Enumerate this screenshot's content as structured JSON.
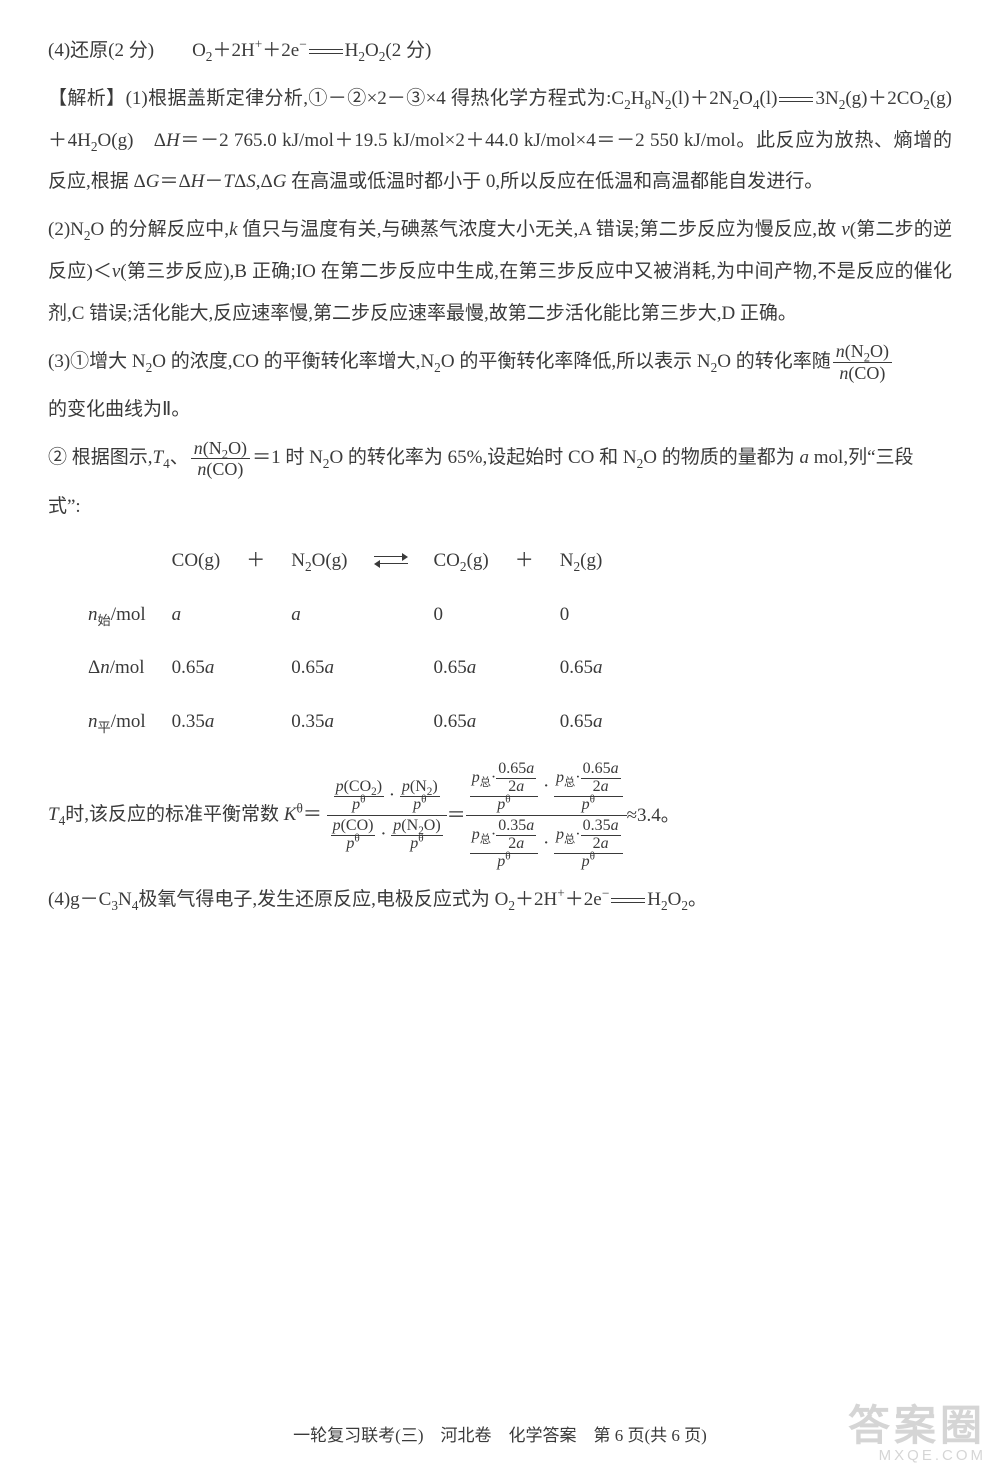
{
  "q4_line": "(4)还原(2 分)　　O₂＋2H⁺＋2e⁻ ══ H₂O₂(2 分)",
  "analysis_label": "【解析】",
  "p1a": "(1)根据盖斯定律分析,①－②×2－③×4 得热化学方程式为:C₂H₈N₂(l)＋2N₂O₄(l) ══ 3N₂(g)＋",
  "p1b": "2CO₂(g)＋4H₂O(g)　Δ",
  "p1b_H": "H",
  "p1c": "＝－2 765.0 kJ/mol＋19.5 kJ/mol×2＋44.0 kJ/mol×4＝－2 550 kJ/mol。此反",
  "p1d": "应为放热、熵增的反应,根据 Δ",
  "p1d_G": "G",
  "p1e": "＝Δ",
  "p1e_H": "H",
  "p1f": "－",
  "p1f_T": "T",
  "p1g": "Δ",
  "p1g_S": "S",
  "p1h": ",Δ",
  "p1h_G": "G",
  "p1i": " 在高温或低温时都小于 0,所以反应在低温和高温都能自发",
  "p1j": "进行。",
  "p2": "(2)N₂O 的分解反应中,k 值只与温度有关,与碘蒸气浓度大小无关,A 错误;第二步反应为慢反应,故 v(第二步的逆反应)＜v(第三步反应),B 正确;IO 在第二步反应中生成,在第三步反应中又被消耗,为中间产物,不是反应的催化剂,C 错误;活化能大,反应速率慢,第二步反应速率最慢,故第二步活化能比第三步大,D 正确。",
  "p3a": "(3)①增大 N₂O 的浓度,CO 的平衡转化率增大,N₂O 的平衡转化率降低,所以表示 N₂O 的转化率随",
  "frac1_num": "n(N₂O)",
  "frac1_den": "n(CO)",
  "p3b": "的变化曲线为Ⅱ。",
  "p4a": "② 根据图示,",
  "p4_T4": "T₄",
  "p4b": "、",
  "frac2_num": "n(N₂O)",
  "frac2_den": "n(CO)",
  "p4c": "＝1 时 N₂O 的转化率为 65%,设起始时 CO 和 N₂O 的物质的量都为 ",
  "p4_a": "a",
  "p4d": " mol,列“三段",
  "p4e": "式”:",
  "tbl": {
    "head": [
      "",
      "CO(g)",
      "＋",
      "N₂O(g)",
      "⇌",
      "CO₂(g)",
      "＋",
      "N₂(g)"
    ],
    "rows": [
      [
        "n始/mol",
        "a",
        "",
        "a",
        "",
        "0",
        "",
        "0"
      ],
      [
        "Δn/mol",
        "0.65a",
        "",
        "0.65a",
        "",
        "0.65a",
        "",
        "0.65a"
      ],
      [
        "n平/mol",
        "0.35a",
        "",
        "0.35a",
        "",
        "0.65a",
        "",
        "0.65a"
      ]
    ]
  },
  "k_pre": "T₄时,该反应的标准平衡常数 ",
  "k_sym": "K",
  "k_sup": "θ",
  "eq": "＝",
  "k_f1": {
    "a": "p(CO₂)",
    "b": "pᶿ",
    "c": "p(N₂)",
    "d": "pᶿ",
    "e": "p(CO)",
    "f": "pᶿ",
    "g": "p(N₂O)",
    "h": "pᶿ"
  },
  "k_num_065": "0.65a",
  "k_num_035": "0.35a",
  "k_den_2a": "2a",
  "k_ptot": "p总",
  "k_ptheta": "pᶿ",
  "k_approx": "≈3.4。",
  "p5": "(4)g－C₃N₄极氧气得电子,发生还原反应,电极反应式为 O₂＋2H⁺＋2e⁻ ══ H₂O₂。",
  "footer": "一轮复习联考(三)　河北卷　化学答案　第 6 页(共 6 页)",
  "wm_big": "答案圈",
  "wm_small": "MXQE.COM"
}
